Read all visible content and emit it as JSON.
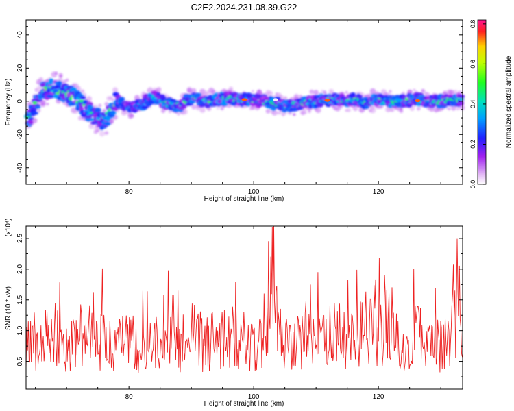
{
  "title": "C2E2.2024.231.08.39.G22",
  "chart_data": [
    {
      "type": "heatmap",
      "xlabel": "Height of straight line (km)",
      "ylabel": "Frequency (Hz)",
      "xlim": [
        63.5,
        133.5
      ],
      "ylim": [
        -50,
        49
      ],
      "xticks": [
        "80",
        "100",
        "120"
      ],
      "yticks": [
        "40",
        "20",
        "0",
        "-20",
        "-40"
      ],
      "colorbar": {
        "label": "Normalized spectral amplitude",
        "range": [
          0.0,
          0.82
        ],
        "ticks": [
          "0.0",
          "0.2",
          "0.4",
          "0.6",
          "0.8"
        ]
      },
      "ridge": {
        "x": [
          64,
          66,
          68,
          70,
          72,
          74,
          76,
          78,
          80,
          82,
          84,
          86,
          88,
          90,
          92,
          94,
          96,
          98,
          100,
          102,
          104,
          106,
          108,
          110,
          112,
          114,
          116,
          118,
          120,
          122,
          124,
          126,
          128,
          130,
          132
        ],
        "y": [
          -10,
          6,
          8,
          5,
          0,
          -8,
          -12,
          0,
          -4,
          -2,
          3,
          -1,
          -3,
          2,
          0,
          1,
          2,
          1,
          1,
          0,
          -2,
          -3,
          -1,
          0,
          1,
          0,
          1,
          -1,
          1,
          0,
          0,
          1,
          0,
          0,
          1
        ]
      }
    },
    {
      "type": "line",
      "xlabel": "Height of straight line (km)",
      "ylabel": "SNR (10 * v/v)",
      "scale_note": "(x10⁴)",
      "xlim": [
        63.5,
        133.5
      ],
      "ylim": [
        0.05,
        2.7
      ],
      "xticks": [
        "80",
        "100",
        "120"
      ],
      "yticks": [
        "0.5",
        "1.0",
        "1.5",
        "2.0",
        "2.5"
      ],
      "series": [
        {
          "color": "#ee2222",
          "x": [
            64,
            66,
            68,
            70,
            72,
            74,
            76,
            78,
            80,
            82,
            84,
            86,
            88,
            90,
            92,
            94,
            96,
            98,
            100,
            102,
            103,
            104,
            106,
            108,
            110,
            112,
            114,
            116,
            118,
            120,
            122,
            124,
            126,
            128,
            130,
            132,
            133
          ],
          "y": [
            1.0,
            0.9,
            1.1,
            0.8,
            1.0,
            1.2,
            0.9,
            0.8,
            1.0,
            0.7,
            0.9,
            1.0,
            0.8,
            1.1,
            0.9,
            1.0,
            1.1,
            1.0,
            0.9,
            1.2,
            2.65,
            1.0,
            0.8,
            1.1,
            0.9,
            1.0,
            1.1,
            0.9,
            1.2,
            1.0,
            1.3,
            0.9,
            1.1,
            1.0,
            0.9,
            1.2,
            1.5
          ]
        }
      ]
    }
  ]
}
